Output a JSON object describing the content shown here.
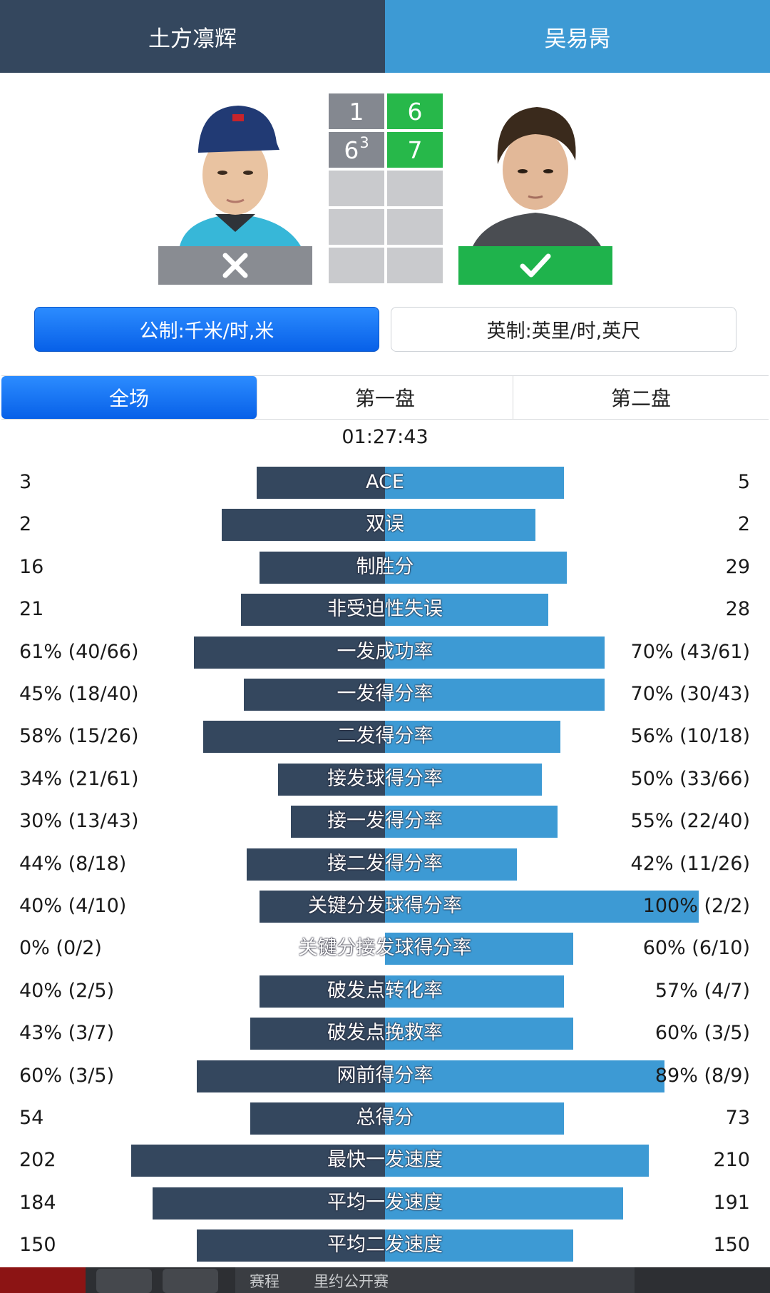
{
  "header": {
    "player1": "土方凛辉",
    "player2": "吴易昺"
  },
  "scoreboard": {
    "player1_sets": [
      {
        "games": "1",
        "tiebreak": ""
      },
      {
        "games": "6",
        "tiebreak": "3"
      }
    ],
    "player2_sets": [
      {
        "games": "6",
        "tiebreak": ""
      },
      {
        "games": "7",
        "tiebreak": ""
      }
    ]
  },
  "units": {
    "metric": "公制:千米/时,米",
    "imperial": "英制:英里/时,英尺"
  },
  "tabs": [
    "全场",
    "第一盘",
    "第二盘"
  ],
  "duration": "01:27:43",
  "stats": [
    {
      "label": "ACE",
      "left": "3",
      "right": "5",
      "left_bar": 0.41,
      "right_bar": 0.57
    },
    {
      "label": "双误",
      "left": "2",
      "right": "2",
      "left_bar": 0.52,
      "right_bar": 0.48
    },
    {
      "label": "制胜分",
      "left": "16",
      "right": "29",
      "left_bar": 0.4,
      "right_bar": 0.58
    },
    {
      "label": "非受迫性失误",
      "left": "21",
      "right": "28",
      "left_bar": 0.46,
      "right_bar": 0.52
    },
    {
      "label": "一发成功率",
      "left": "61% (40/66)",
      "right": "70% (43/61)",
      "left_bar": 0.61,
      "right_bar": 0.7
    },
    {
      "label": "一发得分率",
      "left": "45% (18/40)",
      "right": "70% (30/43)",
      "left_bar": 0.45,
      "right_bar": 0.7
    },
    {
      "label": "二发得分率",
      "left": "58% (15/26)",
      "right": "56% (10/18)",
      "left_bar": 0.58,
      "right_bar": 0.56
    },
    {
      "label": "接发球得分率",
      "left": "34% (21/61)",
      "right": "50% (33/66)",
      "left_bar": 0.34,
      "right_bar": 0.5
    },
    {
      "label": "接一发得分率",
      "left": "30% (13/43)",
      "right": "55% (22/40)",
      "left_bar": 0.3,
      "right_bar": 0.55
    },
    {
      "label": "接二发得分率",
      "left": "44% (8/18)",
      "right": "42% (11/26)",
      "left_bar": 0.44,
      "right_bar": 0.42
    },
    {
      "label": "关键分发球得分率",
      "left": "40% (4/10)",
      "right": "100% (2/2)",
      "left_bar": 0.4,
      "right_bar": 1.0
    },
    {
      "label": "关键分接发球得分率",
      "left": "0% (0/2)",
      "right": "60% (6/10)",
      "left_bar": 0.0,
      "right_bar": 0.6
    },
    {
      "label": "破发点转化率",
      "left": "40% (2/5)",
      "right": "57% (4/7)",
      "left_bar": 0.4,
      "right_bar": 0.57
    },
    {
      "label": "破发点挽救率",
      "left": "43% (3/7)",
      "right": "60% (3/5)",
      "left_bar": 0.43,
      "right_bar": 0.6
    },
    {
      "label": "网前得分率",
      "left": "60% (3/5)",
      "right": "89% (8/9)",
      "left_bar": 0.6,
      "right_bar": 0.89
    },
    {
      "label": "总得分",
      "left": "54",
      "right": "73",
      "left_bar": 0.43,
      "right_bar": 0.57
    },
    {
      "label": "最快一发速度",
      "left": "202",
      "right": "210",
      "left_bar": 0.81,
      "right_bar": 0.84
    },
    {
      "label": "平均一发速度",
      "left": "184",
      "right": "191",
      "left_bar": 0.74,
      "right_bar": 0.76
    },
    {
      "label": "平均二发速度",
      "left": "150",
      "right": "150",
      "left_bar": 0.6,
      "right_bar": 0.6
    }
  ],
  "bottom_bar": {
    "schedule": "赛程",
    "tournament": "里约公开赛"
  },
  "colors": {
    "player1": "#34475e",
    "player2": "#3d9ad4",
    "win": "#1fb34c",
    "loss": "#898c92"
  }
}
